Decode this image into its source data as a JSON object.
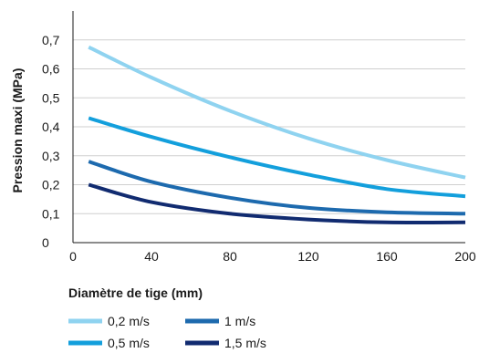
{
  "chart_data": {
    "type": "line",
    "title": "",
    "xlabel": "Diamètre de tige (mm)",
    "ylabel": "Pression maxi (MPa)",
    "xlim": [
      0,
      200
    ],
    "ylim": [
      0,
      0.8
    ],
    "x_ticks": [
      "0",
      "40",
      "80",
      "120",
      "160",
      "200"
    ],
    "y_ticks": [
      "0",
      "0,1",
      "0,2",
      "0,3",
      "0,4",
      "0,5",
      "0,6",
      "0,7"
    ],
    "grid": "horizontal",
    "legend_position": "bottom-left",
    "series": [
      {
        "name": "0,2 m/s",
        "color": "#8fd3f0",
        "x": [
          8,
          40,
          80,
          120,
          160,
          200
        ],
        "y": [
          0.675,
          0.57,
          0.455,
          0.36,
          0.285,
          0.225
        ]
      },
      {
        "name": "0,5 m/s",
        "color": "#139fdc",
        "x": [
          8,
          40,
          80,
          120,
          160,
          200
        ],
        "y": [
          0.43,
          0.365,
          0.295,
          0.235,
          0.185,
          0.16
        ]
      },
      {
        "name": "1 m/s",
        "color": "#1d6aae",
        "x": [
          8,
          40,
          80,
          120,
          160,
          200
        ],
        "y": [
          0.28,
          0.21,
          0.155,
          0.12,
          0.105,
          0.1
        ]
      },
      {
        "name": "1,5 m/s",
        "color": "#112b70",
        "x": [
          8,
          40,
          80,
          120,
          160,
          200
        ],
        "y": [
          0.2,
          0.14,
          0.1,
          0.08,
          0.07,
          0.07
        ]
      }
    ]
  }
}
